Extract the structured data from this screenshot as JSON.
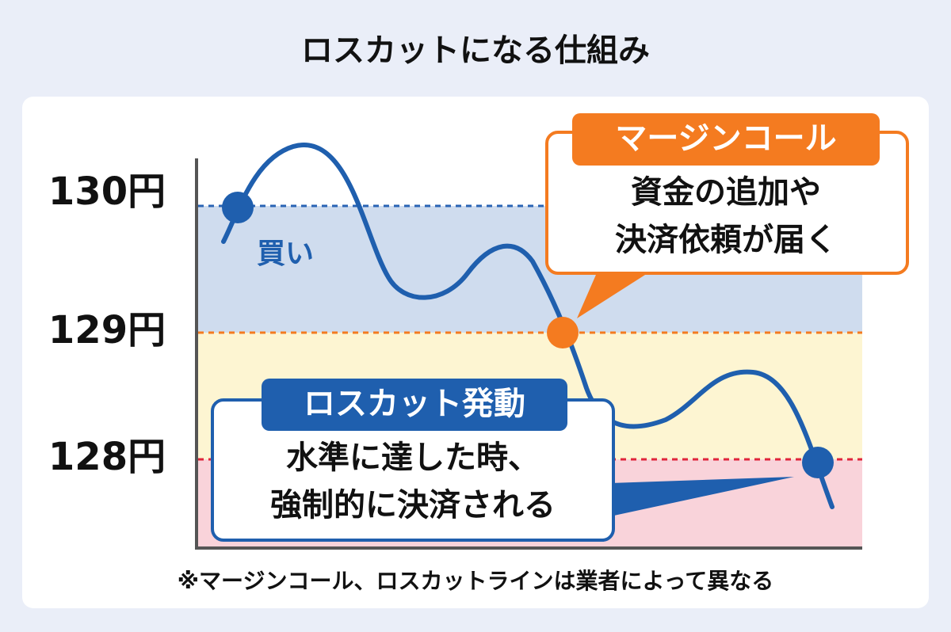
{
  "title": "ロスカットになる仕組み",
  "y_labels": [
    "130円",
    "129円",
    "128円"
  ],
  "buy_label": "買い",
  "margin_call": {
    "header": "マージンコール",
    "lines": [
      "資金の追加や",
      "決済依頼が届く"
    ]
  },
  "loss_cut": {
    "header": "ロスカット発動",
    "lines": [
      "水準に達した時、",
      "強制的に決済される"
    ]
  },
  "footnote": "※マージンコール、ロスカットラインは業者によって異なる"
}
